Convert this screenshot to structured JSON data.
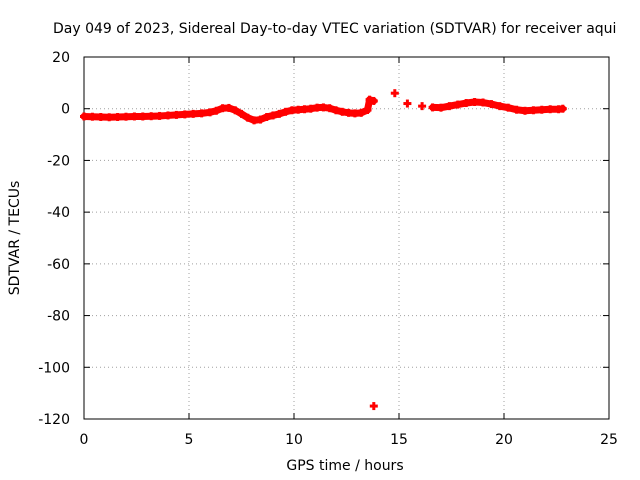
{
  "chart_data": {
    "type": "scatter",
    "title": "Day 049 of 2023, Sidereal Day-to-day VTEC variation (SDTVAR) for receiver aqui",
    "xlabel": "GPS time / hours",
    "ylabel": "SDTVAR / TECUs",
    "xlim": [
      0,
      25
    ],
    "ylim": [
      -120,
      20
    ],
    "xticks": [
      0,
      5,
      10,
      15,
      20,
      25
    ],
    "yticks": [
      20,
      0,
      -20,
      -40,
      -60,
      -80,
      -100,
      -120
    ],
    "grid": true,
    "marker_color": "#ff0000",
    "series": [
      {
        "name": "SDTVAR",
        "points": [
          [
            0.0,
            -3.0
          ],
          [
            0.4,
            -3.1
          ],
          [
            0.8,
            -3.2
          ],
          [
            1.2,
            -3.3
          ],
          [
            1.6,
            -3.2
          ],
          [
            2.0,
            -3.1
          ],
          [
            2.4,
            -3.0
          ],
          [
            2.8,
            -3.0
          ],
          [
            3.2,
            -2.9
          ],
          [
            3.6,
            -2.8
          ],
          [
            4.0,
            -2.6
          ],
          [
            4.4,
            -2.4
          ],
          [
            4.8,
            -2.2
          ],
          [
            5.2,
            -2.0
          ],
          [
            5.6,
            -1.8
          ],
          [
            6.0,
            -1.4
          ],
          [
            6.3,
            -0.8
          ],
          [
            6.6,
            0.2
          ],
          [
            6.9,
            0.3
          ],
          [
            7.2,
            -0.6
          ],
          [
            7.5,
            -2.0
          ],
          [
            7.8,
            -3.5
          ],
          [
            8.1,
            -4.5
          ],
          [
            8.4,
            -4.2
          ],
          [
            8.7,
            -3.2
          ],
          [
            9.0,
            -2.6
          ],
          [
            9.3,
            -2.0
          ],
          [
            9.6,
            -1.2
          ],
          [
            9.9,
            -0.6
          ],
          [
            10.2,
            -0.4
          ],
          [
            10.5,
            -0.2
          ],
          [
            10.8,
            0.0
          ],
          [
            11.1,
            0.4
          ],
          [
            11.4,
            0.5
          ],
          [
            11.7,
            0.2
          ],
          [
            12.0,
            -0.6
          ],
          [
            12.3,
            -1.2
          ],
          [
            12.6,
            -1.6
          ],
          [
            12.9,
            -1.8
          ],
          [
            13.2,
            -1.6
          ],
          [
            13.5,
            -0.5
          ],
          [
            13.6,
            3.5
          ],
          [
            13.8,
            3.0
          ],
          [
            13.8,
            -115.0
          ],
          [
            14.8,
            6.0
          ],
          [
            15.4,
            2.0
          ],
          [
            16.1,
            1.0
          ],
          [
            16.6,
            0.5
          ],
          [
            17.0,
            0.4
          ],
          [
            17.4,
            1.0
          ],
          [
            17.8,
            1.6
          ],
          [
            18.2,
            2.2
          ],
          [
            18.6,
            2.6
          ],
          [
            19.0,
            2.4
          ],
          [
            19.4,
            1.8
          ],
          [
            19.8,
            1.0
          ],
          [
            20.2,
            0.4
          ],
          [
            20.6,
            -0.4
          ],
          [
            21.0,
            -0.8
          ],
          [
            21.4,
            -0.6
          ],
          [
            21.8,
            -0.4
          ],
          [
            22.2,
            -0.2
          ],
          [
            22.6,
            -0.2
          ],
          [
            22.8,
            0.0
          ]
        ]
      }
    ]
  }
}
